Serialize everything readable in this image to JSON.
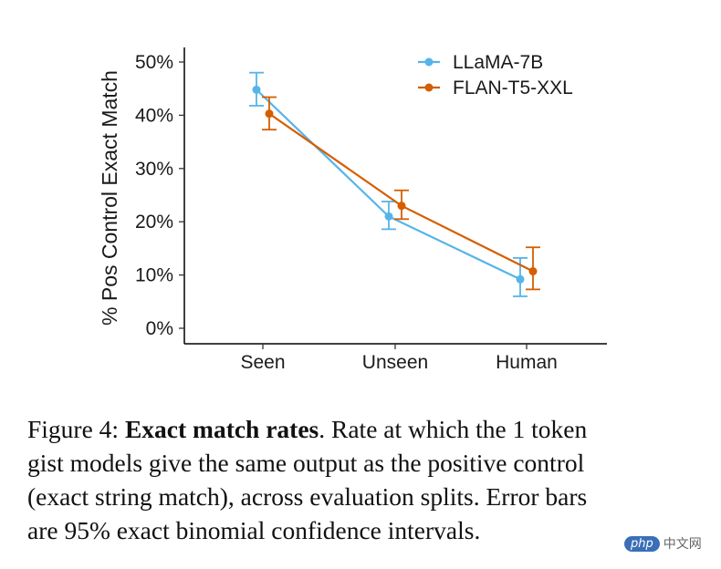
{
  "chart_data": {
    "type": "line",
    "categories": [
      "Seen",
      "Unseen",
      "Human"
    ],
    "ylabel": "% Pos Control Exact Match",
    "ylim": [
      0,
      50
    ],
    "yticks": [
      0,
      10,
      20,
      30,
      40,
      50
    ],
    "ytick_labels": [
      "0%",
      "10%",
      "20%",
      "30%",
      "40%",
      "50%"
    ],
    "legend_position": "top-right",
    "series": [
      {
        "name": "LLaMA-7B",
        "color": "#56b4e9",
        "values": [
          44.8,
          21.0,
          9.2
        ],
        "ci_low": [
          41.8,
          18.6,
          6.0
        ],
        "ci_high": [
          48.0,
          23.8,
          13.2
        ]
      },
      {
        "name": "FLAN-T5-XXL",
        "color": "#d55e00",
        "values": [
          40.3,
          23.0,
          10.7
        ],
        "ci_low": [
          37.3,
          20.5,
          7.3
        ],
        "ci_high": [
          43.4,
          25.9,
          15.2
        ]
      }
    ]
  },
  "caption": {
    "prefix": "Figure 4: ",
    "bold": "Exact match rates",
    "line1_rest": ". Rate at which the 1 token",
    "line2": "gist models give the same output as the positive control",
    "line3": "(exact string match), across evaluation splits. Error bars",
    "line4": "are 95% exact binomial confidence intervals."
  },
  "watermark": {
    "badge": "php",
    "text": "中文网"
  }
}
